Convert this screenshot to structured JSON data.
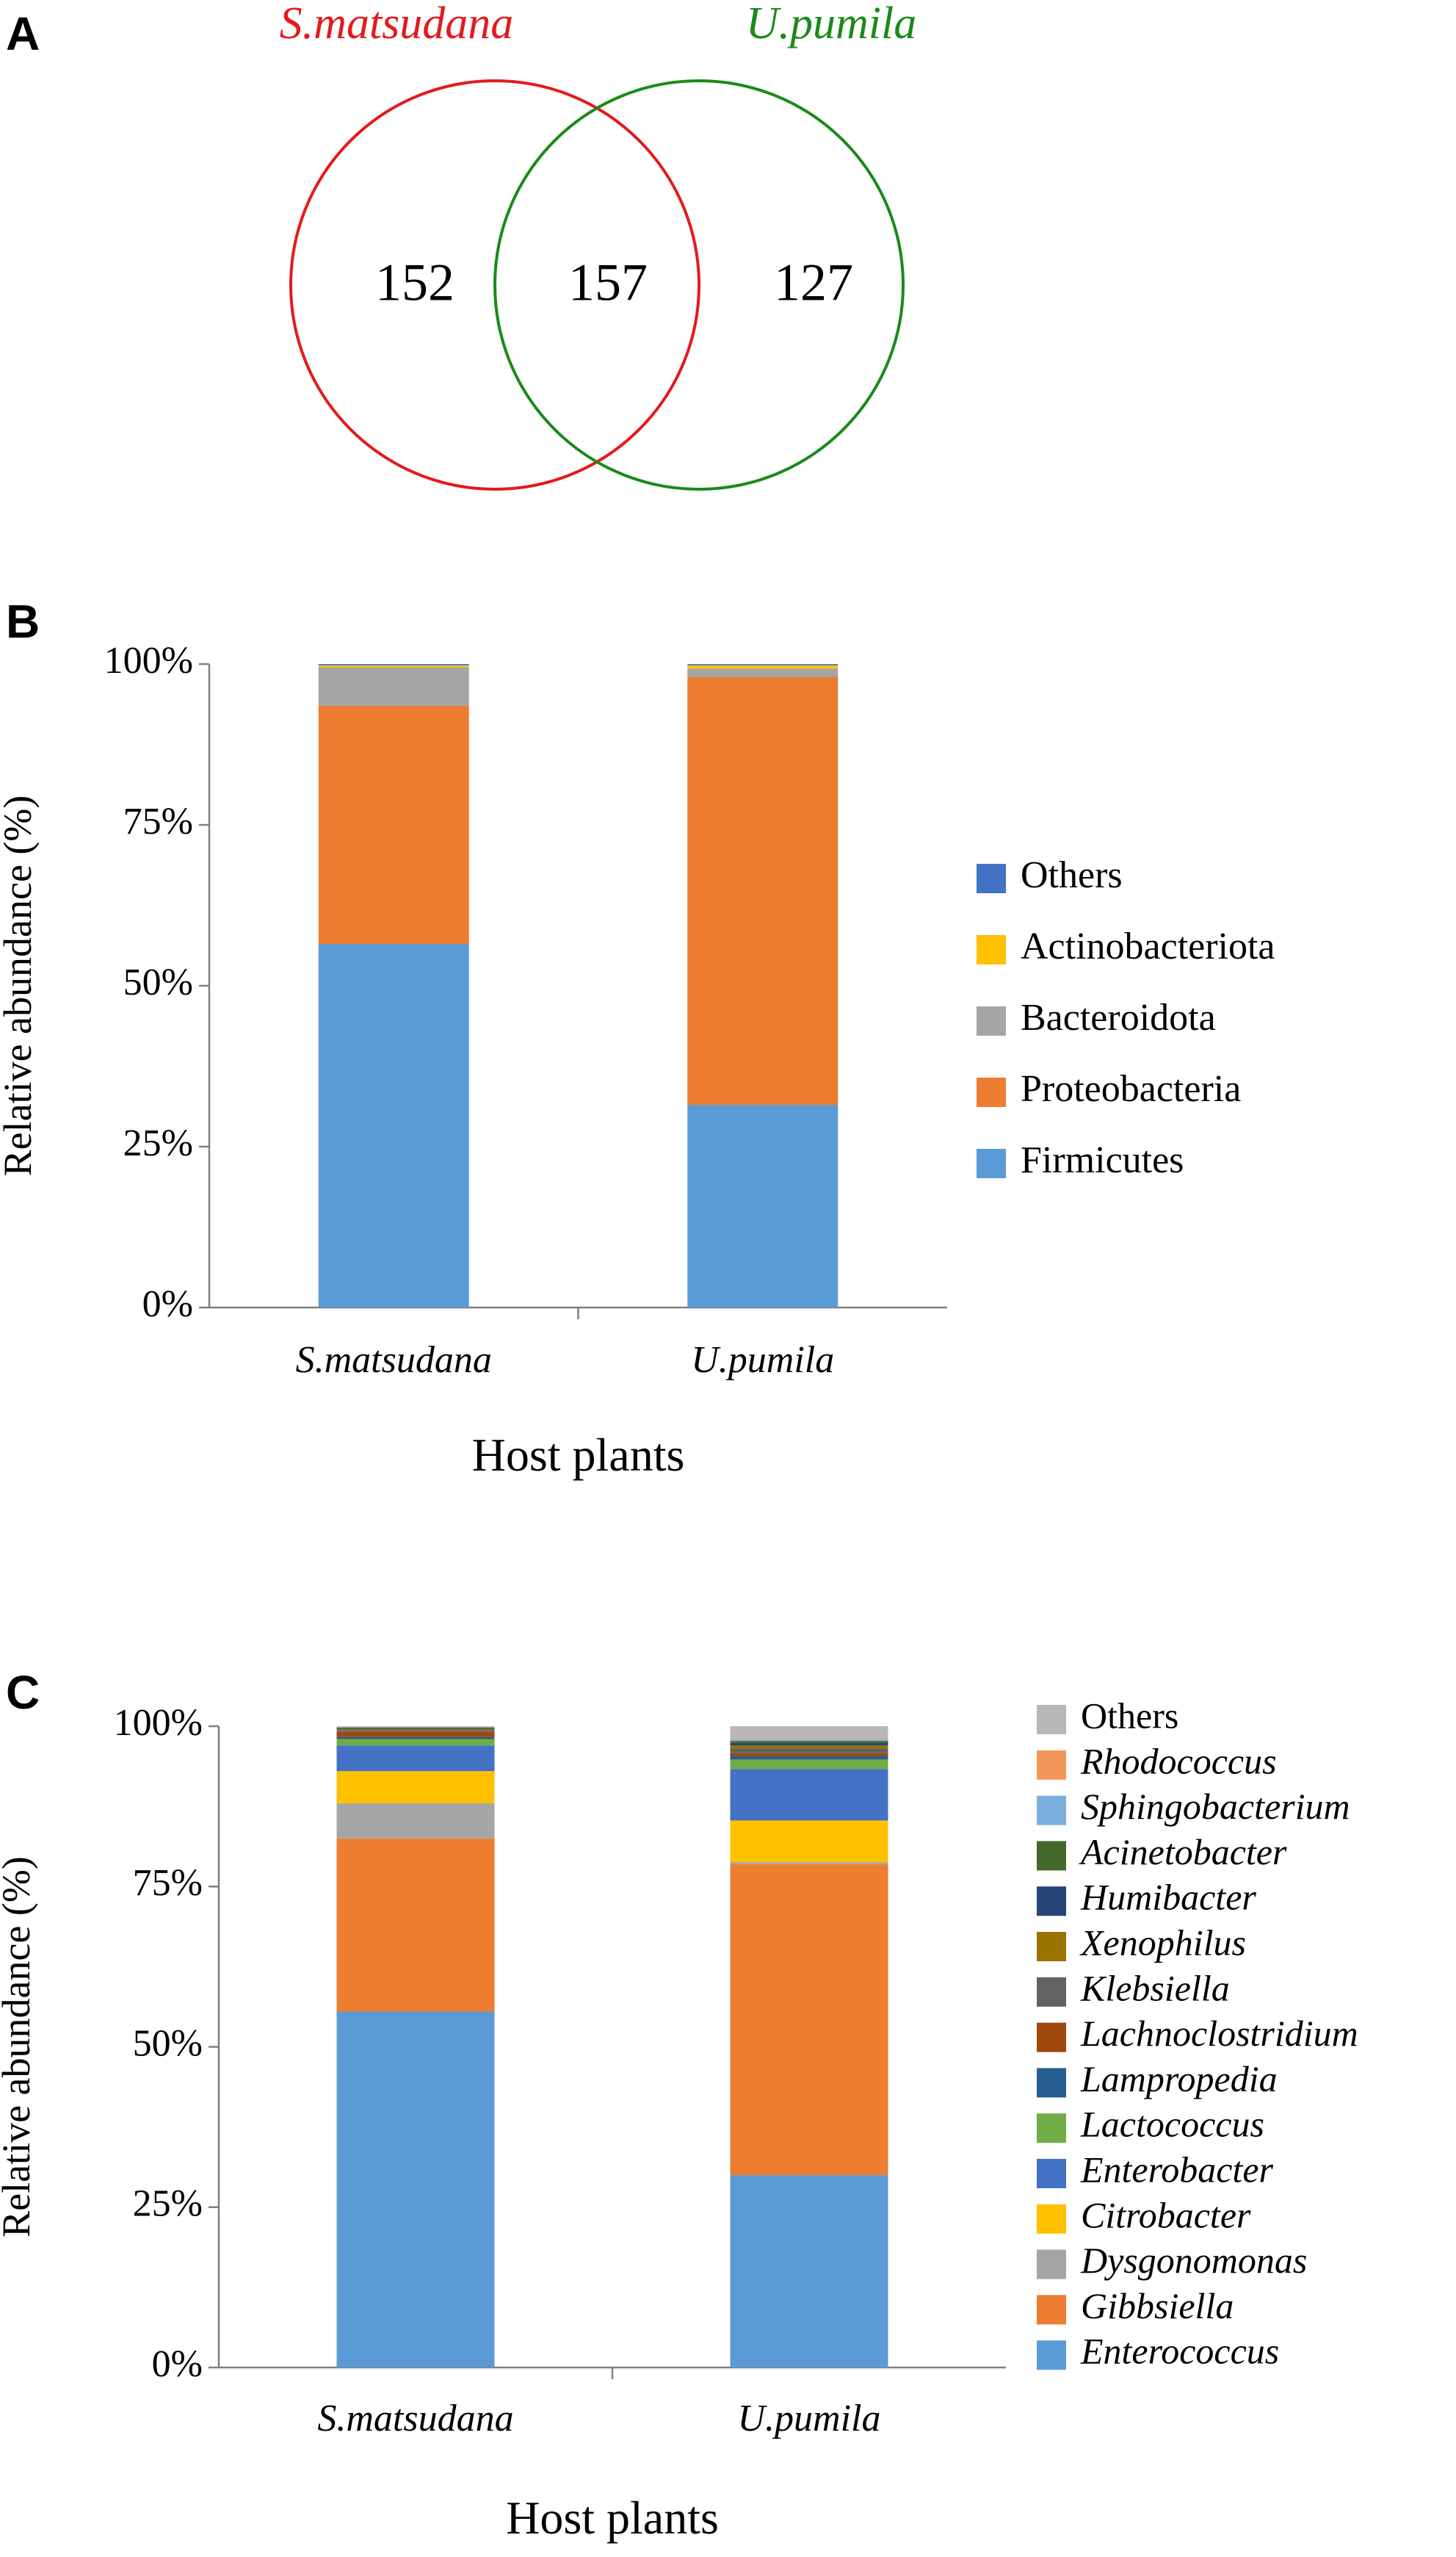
{
  "panels": {
    "a": "A",
    "b": "B",
    "c": "C"
  },
  "colors": {
    "s_matsudana": "#e31a1c",
    "u_pumila": "#1a8a1a"
  },
  "chart_data": [
    {
      "type": "venn",
      "sets": [
        "S.matsudana",
        "U.pumila"
      ],
      "values": {
        "only_s_matsudana": 152,
        "shared": 157,
        "only_u_pumila": 127
      }
    },
    {
      "type": "bar",
      "stacked": true,
      "xlabel": "Host plants",
      "ylabel": "Relative abundance (%)",
      "ylim": [
        0,
        100
      ],
      "yticks": [
        "0%",
        "25%",
        "50%",
        "75%",
        "100%"
      ],
      "categories": [
        "S.matsudana",
        "U.pumila"
      ],
      "italic_legend": false,
      "series": [
        {
          "name": "Firmicutes",
          "color": "#5b9bd5",
          "values": [
            56.5,
            31.5
          ]
        },
        {
          "name": "Proteobacteria",
          "color": "#ed7d31",
          "values": [
            37.0,
            66.5
          ]
        },
        {
          "name": "Bacteroidota",
          "color": "#a5a5a5",
          "values": [
            6.0,
            1.3
          ]
        },
        {
          "name": "Actinobacteriota",
          "color": "#ffc000",
          "values": [
            0.3,
            0.5
          ]
        },
        {
          "name": "Others",
          "color": "#4472c4",
          "values": [
            0.2,
            0.2
          ]
        }
      ]
    },
    {
      "type": "bar",
      "stacked": true,
      "xlabel": "Host plants",
      "ylabel": "Relative abundance (%)",
      "ylim": [
        0,
        100
      ],
      "yticks": [
        "0%",
        "25%",
        "50%",
        "75%",
        "100%"
      ],
      "categories": [
        "S.matsudana",
        "U.pumila"
      ],
      "italic_legend": true,
      "series": [
        {
          "name": "Enterococcus",
          "color": "#5b9bd5",
          "values": [
            55.5,
            30.0
          ],
          "italic": true
        },
        {
          "name": "Gibbsiella",
          "color": "#ed7d31",
          "values": [
            27.0,
            48.5
          ],
          "italic": true
        },
        {
          "name": "Dysgonomonas",
          "color": "#a5a5a5",
          "values": [
            5.5,
            0.3
          ],
          "italic": true
        },
        {
          "name": "Citrobacter",
          "color": "#ffc000",
          "values": [
            5.0,
            6.5
          ],
          "italic": true
        },
        {
          "name": "Enterobacter",
          "color": "#4472c4",
          "values": [
            4.0,
            8.0
          ],
          "italic": true
        },
        {
          "name": "Lactococcus",
          "color": "#70ad47",
          "values": [
            1.0,
            1.5
          ],
          "italic": true
        },
        {
          "name": "Lampropedia",
          "color": "#255e91",
          "values": [
            0.3,
            0.5
          ],
          "italic": true
        },
        {
          "name": "Lachnoclostridium",
          "color": "#9e480e",
          "values": [
            0.8,
            0.5
          ],
          "italic": true
        },
        {
          "name": "Klebsiella",
          "color": "#636363",
          "values": [
            0.3,
            0.7
          ],
          "italic": true
        },
        {
          "name": "Xenophilus",
          "color": "#997300",
          "values": [
            0.2,
            0.5
          ],
          "italic": true
        },
        {
          "name": "Humibacter",
          "color": "#264478",
          "values": [
            0.1,
            0.4
          ],
          "italic": true
        },
        {
          "name": "Acinetobacter",
          "color": "#43682b",
          "values": [
            0.1,
            0.3
          ],
          "italic": true
        },
        {
          "name": "Sphingobacterium",
          "color": "#7cafdd",
          "values": [
            0.1,
            0.2
          ],
          "italic": true
        },
        {
          "name": "Rhodococcus",
          "color": "#f1975a",
          "values": [
            0.05,
            0.1
          ],
          "italic": true
        },
        {
          "name": "Others",
          "color": "#b7b7b7",
          "values": [
            0.05,
            2.0
          ],
          "italic": false
        }
      ]
    }
  ]
}
